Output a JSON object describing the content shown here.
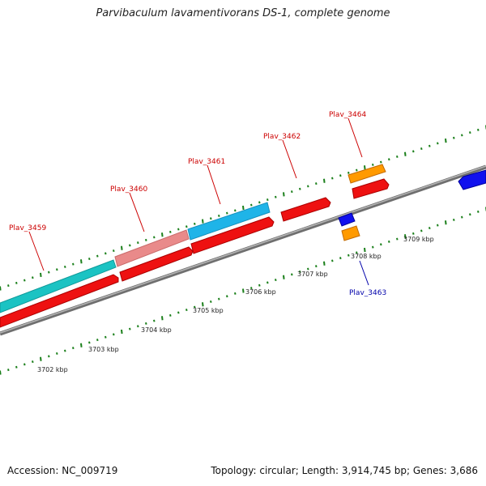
{
  "title": "Parvibaculum lavamentivorans DS-1, complete genome",
  "footer": {
    "accession": "Accession: NC_009719",
    "summary": "Topology: circular; Length: 3,914,745 bp; Genes: 3,686"
  },
  "colors": {
    "backbone": "#7a7a7a",
    "tick": "#1a7f1a",
    "gene_label_forward": "#cc0000",
    "gene_label_reverse": "#0000aa"
  },
  "scale_labels": [
    "3702 kbp",
    "3703 kbp",
    "3704 kbp",
    "3705 kbp",
    "3706 kbp",
    "3707 kbp",
    "3708 kbp",
    "3709 kbp"
  ],
  "gene_labels": [
    {
      "text": "Plav_3459",
      "strand": "forward"
    },
    {
      "text": "Plav_3460",
      "strand": "forward"
    },
    {
      "text": "Plav_3461",
      "strand": "forward"
    },
    {
      "text": "Plav_3462",
      "strand": "forward"
    },
    {
      "text": "Plav_3464",
      "strand": "forward"
    },
    {
      "text": "Plav_3463",
      "strand": "reverse"
    }
  ]
}
